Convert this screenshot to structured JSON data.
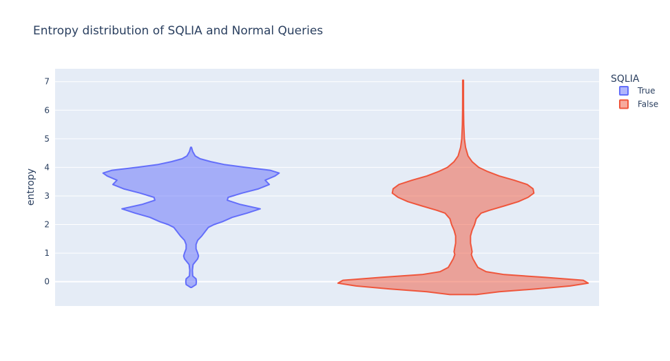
{
  "chart_data": {
    "type": "violin",
    "title": "Entropy distribution of SQLIA and Normal Queries",
    "xlabel": "",
    "ylabel": "entropy",
    "ylim": [
      -0.85,
      7.45
    ],
    "yticks": [
      "0",
      "1",
      "2",
      "3",
      "4",
      "5",
      "6",
      "7"
    ],
    "grid": true,
    "legend": {
      "title": "SQLIA",
      "position": "right"
    },
    "series": [
      {
        "name": "True",
        "color": "#636efa",
        "fill": "rgba(99,110,250,0.5)",
        "range": [
          -0.2,
          4.7
        ],
        "profile": [
          [
            -0.2,
            0.03
          ],
          [
            -0.1,
            0.3
          ],
          [
            0.0,
            0.32
          ],
          [
            0.1,
            0.3
          ],
          [
            0.2,
            0.1
          ],
          [
            0.4,
            0.08
          ],
          [
            0.6,
            0.12
          ],
          [
            0.8,
            0.4
          ],
          [
            0.9,
            0.45
          ],
          [
            1.0,
            0.4
          ],
          [
            1.15,
            0.3
          ],
          [
            1.3,
            0.3
          ],
          [
            1.45,
            0.4
          ],
          [
            1.6,
            0.65
          ],
          [
            1.75,
            0.85
          ],
          [
            1.9,
            1.05
          ],
          [
            2.0,
            1.4
          ],
          [
            2.1,
            1.9
          ],
          [
            2.25,
            2.5
          ],
          [
            2.4,
            3.4
          ],
          [
            2.55,
            4.2
          ],
          [
            2.7,
            3.0
          ],
          [
            2.85,
            2.2
          ],
          [
            2.95,
            2.25
          ],
          [
            3.1,
            3.1
          ],
          [
            3.25,
            4.1
          ],
          [
            3.4,
            4.75
          ],
          [
            3.55,
            4.5
          ],
          [
            3.7,
            5.1
          ],
          [
            3.8,
            5.35
          ],
          [
            3.9,
            4.8
          ],
          [
            4.0,
            3.3
          ],
          [
            4.1,
            2.0
          ],
          [
            4.2,
            1.2
          ],
          [
            4.3,
            0.55
          ],
          [
            4.4,
            0.25
          ],
          [
            4.55,
            0.1
          ],
          [
            4.7,
            0.0
          ]
        ]
      },
      {
        "name": "False",
        "color": "#ef553b",
        "fill": "rgba(239,85,59,0.5)",
        "range": [
          -0.45,
          7.05
        ],
        "profile": [
          [
            -0.45,
            0.8
          ],
          [
            -0.35,
            2.2
          ],
          [
            -0.25,
            4.5
          ],
          [
            -0.15,
            6.5
          ],
          [
            -0.05,
            7.6
          ],
          [
            0.05,
            7.3
          ],
          [
            0.15,
            5.0
          ],
          [
            0.25,
            2.5
          ],
          [
            0.35,
            1.4
          ],
          [
            0.5,
            0.9
          ],
          [
            0.65,
            0.75
          ],
          [
            0.8,
            0.6
          ],
          [
            0.95,
            0.5
          ],
          [
            1.05,
            0.55
          ],
          [
            1.2,
            0.5
          ],
          [
            1.35,
            0.45
          ],
          [
            1.6,
            0.45
          ],
          [
            1.8,
            0.55
          ],
          [
            2.0,
            0.7
          ],
          [
            2.2,
            0.8
          ],
          [
            2.4,
            1.1
          ],
          [
            2.5,
            1.6
          ],
          [
            2.65,
            2.5
          ],
          [
            2.8,
            3.35
          ],
          [
            2.95,
            3.95
          ],
          [
            3.1,
            4.3
          ],
          [
            3.25,
            4.25
          ],
          [
            3.4,
            3.9
          ],
          [
            3.55,
            3.1
          ],
          [
            3.7,
            2.2
          ],
          [
            3.85,
            1.5
          ],
          [
            4.0,
            0.95
          ],
          [
            4.2,
            0.55
          ],
          [
            4.4,
            0.3
          ],
          [
            4.7,
            0.15
          ],
          [
            5.0,
            0.08
          ],
          [
            5.5,
            0.04
          ],
          [
            6.0,
            0.03
          ],
          [
            6.5,
            0.02
          ],
          [
            7.05,
            0.02
          ]
        ]
      }
    ]
  }
}
